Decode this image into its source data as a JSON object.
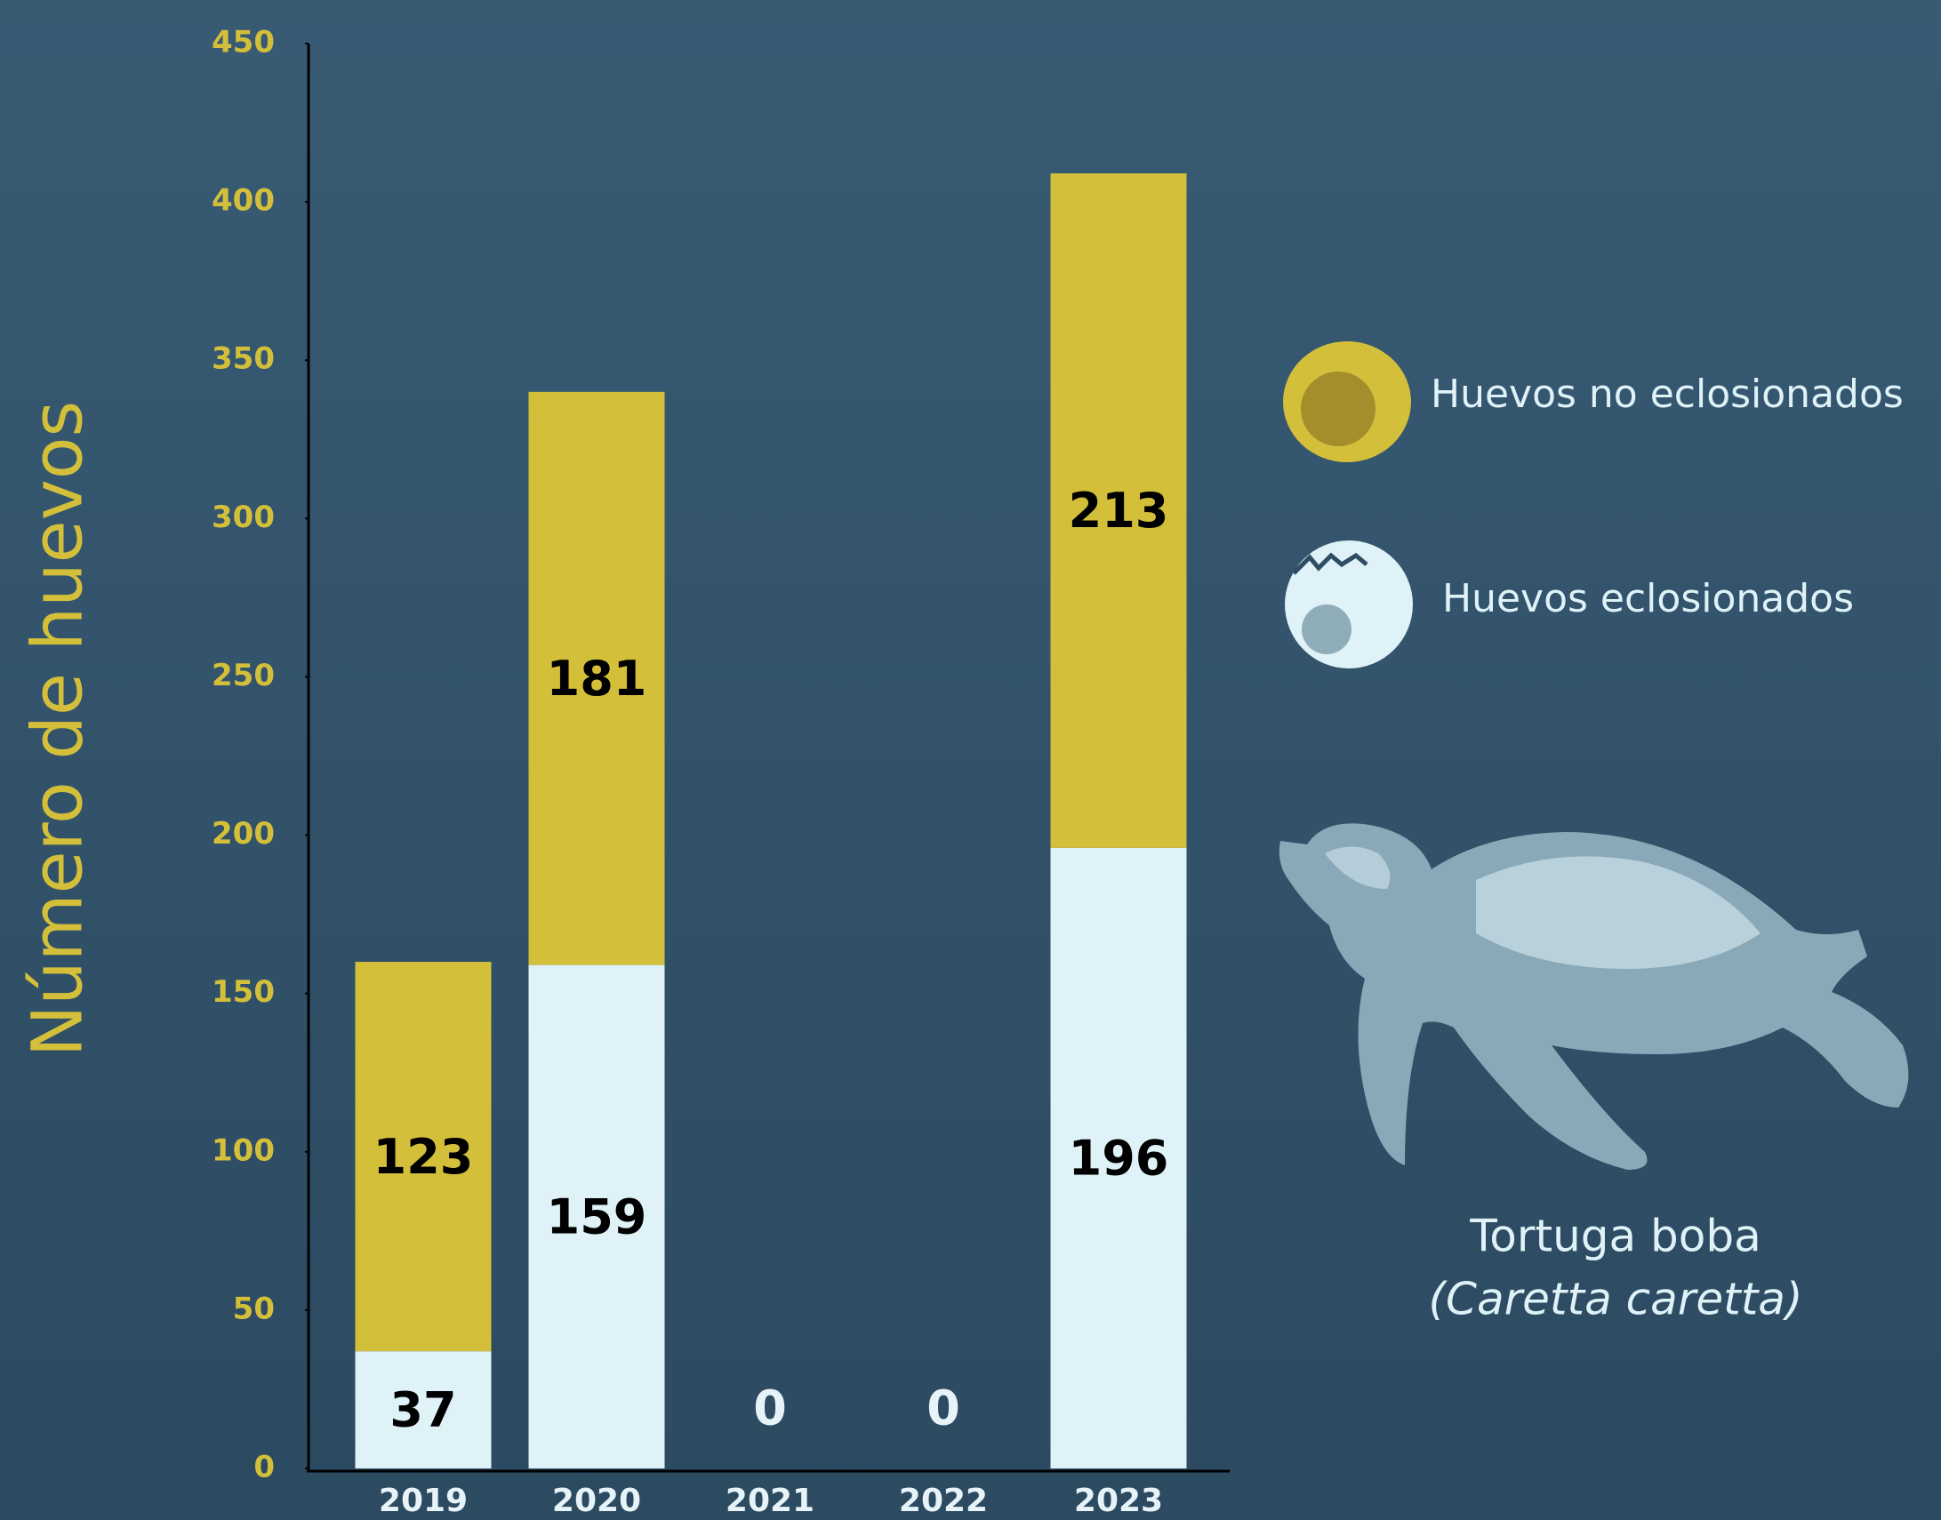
{
  "chart_data": {
    "type": "stacked_bar",
    "y_label": "Número de huevos",
    "categories": [
      "2019",
      "2020",
      "2021",
      "2022",
      "2023"
    ],
    "series": [
      {
        "name": "Huevos eclosionados",
        "color": "#dff2f8",
        "values": [
          37,
          159,
          0,
          0,
          196
        ]
      },
      {
        "name": "Huevos no eclosionados",
        "color": "#d4bf3b",
        "values": [
          123,
          181,
          0,
          0,
          213
        ]
      }
    ],
    "ylim": [
      0,
      450
    ],
    "yticks": [
      0,
      50,
      100,
      150,
      200,
      250,
      300,
      350,
      400,
      450
    ],
    "grid": false
  },
  "species": {
    "common_name": "Tortuga boba",
    "scientific_name": "(Caretta caretta)"
  }
}
